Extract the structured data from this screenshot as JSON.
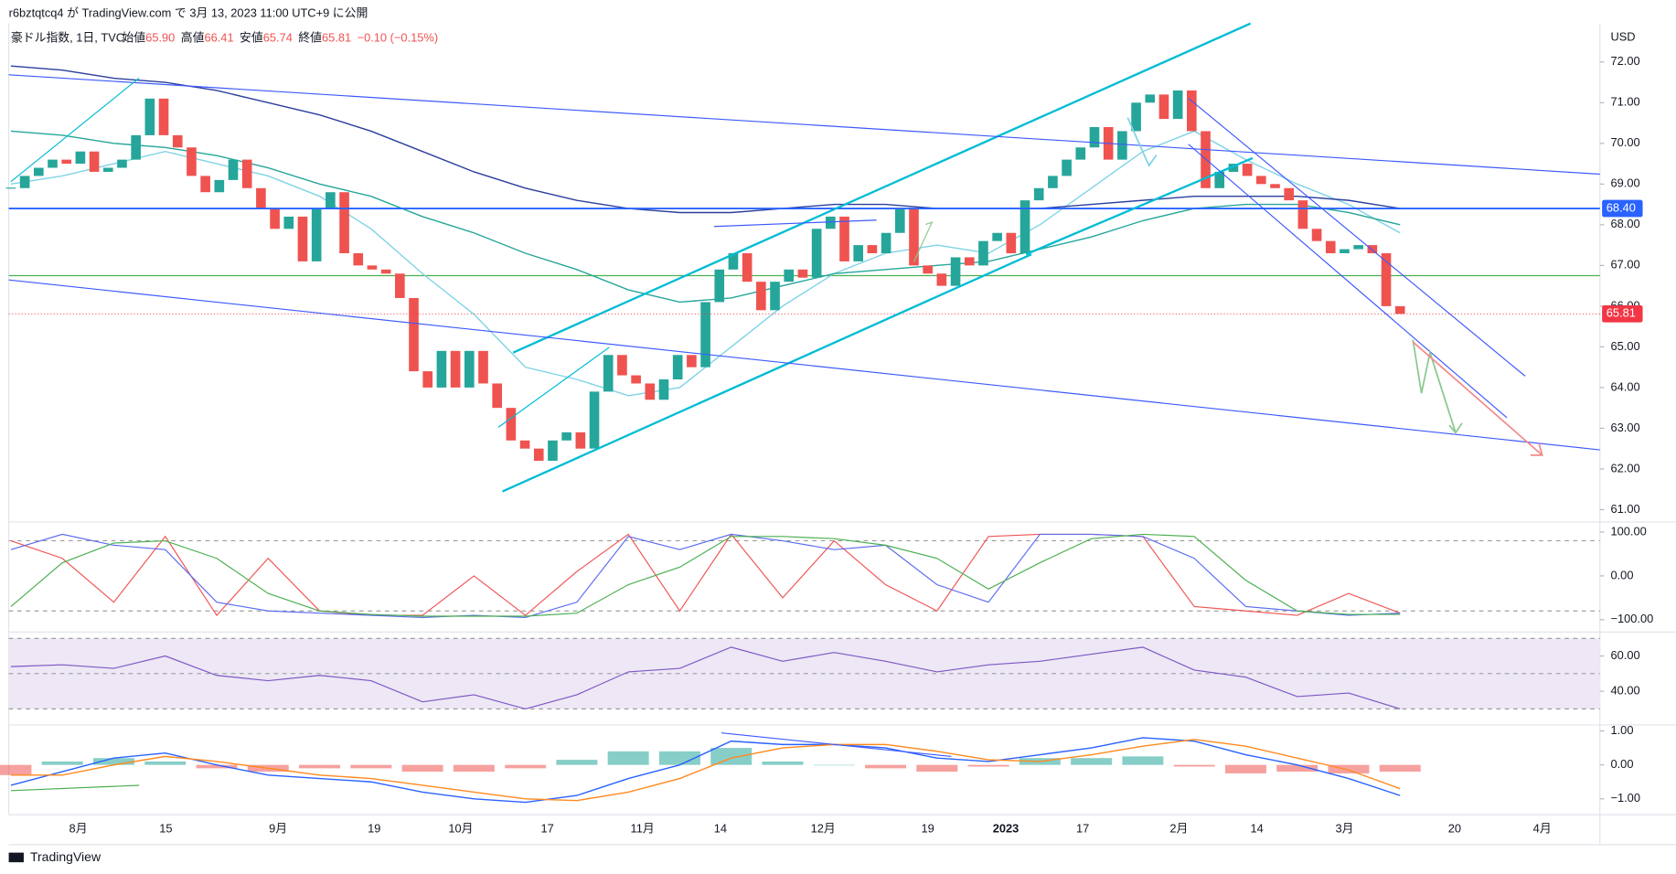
{
  "header": {
    "publisher": "r6bztqtcq4 が TradingView.com で 3月 13, 2023 11:00 UTC+9 に公開",
    "footer": "TradingView"
  },
  "chart_data": [
    {
      "type": "candlestick",
      "title": "豪ドル指数, 1日, TVC",
      "currency": "USD",
      "legend": {
        "open_label": "始値",
        "open": "65.90",
        "high_label": "高値",
        "high": "66.41",
        "low_label": "安値",
        "low": "65.74",
        "close_label": "終値",
        "close": "65.81",
        "change": "−0.10 (−0.15%)"
      },
      "x_labels": [
        "8月",
        "15",
        "9月",
        "19",
        "10月",
        "17",
        "11月",
        "14",
        "12月",
        "19",
        "2023",
        "17",
        "2月",
        "14",
        "3月",
        "20",
        "4月"
      ],
      "closes": [
        68.9,
        69.2,
        69.4,
        69.6,
        69.5,
        69.8,
        69.3,
        69.4,
        69.6,
        70.2,
        71.1,
        70.2,
        69.9,
        69.2,
        68.8,
        69.1,
        69.6,
        68.9,
        68.4,
        67.9,
        68.2,
        67.1,
        68.4,
        68.8,
        67.3,
        67.0,
        66.9,
        66.8,
        66.2,
        64.4,
        64.0,
        64.9,
        64.0,
        64.9,
        64.1,
        63.5,
        62.7,
        62.5,
        62.2,
        62.7,
        62.9,
        62.5,
        63.9,
        64.8,
        64.3,
        64.1,
        63.7,
        64.2,
        64.8,
        64.5,
        66.1,
        66.9,
        67.3,
        66.6,
        65.9,
        66.6,
        66.9,
        66.7,
        67.9,
        68.2,
        67.1,
        67.5,
        67.3,
        67.8,
        68.4,
        67.0,
        66.8,
        66.5,
        67.2,
        67.0,
        67.6,
        67.8,
        67.3,
        68.6,
        68.9,
        69.2,
        69.6,
        69.9,
        70.4,
        69.6,
        70.3,
        71.0,
        71.2,
        70.6,
        71.3,
        70.3,
        68.9,
        69.3,
        69.5,
        69.2,
        69.0,
        68.9,
        68.6,
        67.9,
        67.6,
        67.3,
        67.4,
        67.5,
        67.3,
        66.0,
        65.81
      ],
      "up_color": "#26a69a",
      "down_color": "#ef5350",
      "moving_averages": [
        {
          "color": "#7fd3e6",
          "values": [
            69.0,
            69.2,
            69.5,
            69.8,
            69.5,
            69.2,
            68.7,
            67.9,
            66.8,
            65.8,
            64.5,
            64.2,
            63.8,
            64.0,
            65.0,
            66.0,
            66.8,
            67.3,
            67.5,
            67.3,
            68.0,
            68.9,
            69.8,
            70.3,
            69.6,
            69.0,
            68.5,
            67.8
          ]
        },
        {
          "color": "#26a69a",
          "values": [
            70.3,
            70.2,
            70.0,
            69.9,
            69.7,
            69.4,
            69.0,
            68.7,
            68.2,
            67.8,
            67.3,
            66.9,
            66.4,
            66.1,
            66.2,
            66.5,
            66.8,
            66.9,
            67.0,
            67.1,
            67.4,
            67.7,
            68.1,
            68.4,
            68.5,
            68.5,
            68.3,
            68.0
          ]
        },
        {
          "color": "#2a3f9d",
          "values": [
            71.9,
            71.8,
            71.6,
            71.5,
            71.3,
            71.0,
            70.7,
            70.3,
            69.8,
            69.3,
            68.9,
            68.6,
            68.4,
            68.3,
            68.3,
            68.4,
            68.5,
            68.5,
            68.4,
            68.4,
            68.4,
            68.5,
            68.6,
            68.7,
            68.7,
            68.7,
            68.6,
            68.4
          ]
        }
      ],
      "price_lines": [
        {
          "value": 68.4,
          "label": "68.40",
          "color": "#2962ff"
        },
        {
          "value": 65.81,
          "label": "65.81",
          "color": "#f23645"
        }
      ],
      "level_line": {
        "value": 66.75,
        "color": "#4caf50"
      },
      "ylim": [
        60.737,
        72.945
      ],
      "yticks": [
        {
          "value": 61,
          "label": "61.00"
        },
        {
          "value": 62,
          "label": "62.00"
        },
        {
          "value": 63,
          "label": "63.00"
        },
        {
          "value": 64,
          "label": "64.00"
        },
        {
          "value": 65,
          "label": "65.00"
        },
        {
          "value": 66,
          "label": "66.00"
        },
        {
          "value": 67,
          "label": "67.00"
        },
        {
          "value": 68,
          "label": "68.00"
        },
        {
          "value": 69,
          "label": "69.00"
        },
        {
          "value": 70,
          "label": "70.00"
        },
        {
          "value": 71,
          "label": "71.00"
        },
        {
          "value": 72,
          "label": "72.00"
        }
      ]
    },
    {
      "type": "line",
      "ylim": [
        -124.4,
        119.5
      ],
      "yticks": [
        {
          "value": 100,
          "label": "100.00"
        },
        {
          "value": 0,
          "label": "0.00"
        },
        {
          "value": -100,
          "label": "−100.00"
        }
      ],
      "levels": [
        80,
        -80
      ],
      "series": [
        {
          "color": "#f05454",
          "values": [
            80,
            40,
            -60,
            90,
            -90,
            40,
            -80,
            -90,
            -90,
            0,
            -90,
            10,
            95,
            -80,
            95,
            -50,
            80,
            -20,
            -80,
            90,
            95,
            95,
            90,
            -70,
            -80,
            -90,
            -40,
            -85
          ]
        },
        {
          "color": "#5b6cf0",
          "values": [
            60,
            95,
            70,
            60,
            -60,
            -80,
            -85,
            -90,
            -95,
            -90,
            -95,
            -60,
            90,
            60,
            95,
            80,
            60,
            70,
            -20,
            -60,
            95,
            95,
            90,
            40,
            -70,
            -80,
            -90,
            -85
          ]
        },
        {
          "color": "#4caf50",
          "values": [
            -70,
            30,
            75,
            80,
            40,
            -40,
            -80,
            -88,
            -92,
            -92,
            -92,
            -85,
            -20,
            20,
            90,
            90,
            85,
            70,
            40,
            -30,
            30,
            85,
            95,
            90,
            -10,
            -80,
            -88,
            -88
          ]
        }
      ]
    },
    {
      "type": "line",
      "ylim": [
        21.8,
        72.7
      ],
      "yticks": [
        {
          "value": 60,
          "label": "60.00"
        },
        {
          "value": 40,
          "label": "40.00"
        }
      ],
      "levels": [
        70,
        50,
        30
      ],
      "band": [
        30,
        70
      ],
      "band_color": "#ede7f6",
      "series": [
        {
          "color": "#7e57c2",
          "values": [
            54,
            55,
            53,
            60,
            49,
            46,
            49,
            46,
            34,
            38,
            30,
            38,
            51,
            53,
            65,
            57,
            62,
            57,
            51,
            55,
            57,
            61,
            65,
            52,
            48,
            37,
            39,
            30
          ]
        }
      ]
    },
    {
      "type": "macd",
      "ylim": [
        -1.45,
        1.16
      ],
      "yticks": [
        {
          "value": 1,
          "label": "1.00"
        },
        {
          "value": 0,
          "label": "0.00"
        },
        {
          "value": -1,
          "label": "−1.00"
        }
      ],
      "histogram": [
        -0.3,
        0.1,
        0.2,
        0.1,
        -0.1,
        -0.2,
        -0.1,
        -0.1,
        -0.2,
        -0.2,
        -0.1,
        0.15,
        0.4,
        0.4,
        0.5,
        0.1,
        0,
        -0.1,
        -0.2,
        -0.05,
        0.2,
        0.2,
        0.25,
        -0.05,
        -0.25,
        -0.2,
        -0.25,
        -0.2
      ],
      "hist_up_color": "#26a69a",
      "hist_down_color": "#ef5350",
      "series": [
        {
          "color": "#2962ff",
          "values": [
            -0.6,
            -0.2,
            0.2,
            0.35,
            0.0,
            -0.3,
            -0.4,
            -0.5,
            -0.8,
            -1.0,
            -1.1,
            -0.9,
            -0.4,
            0.0,
            0.7,
            0.6,
            0.6,
            0.5,
            0.2,
            0.1,
            0.3,
            0.5,
            0.8,
            0.7,
            0.3,
            0.0,
            -0.4,
            -0.9
          ]
        },
        {
          "color": "#ff8a1f",
          "values": [
            -0.3,
            -0.3,
            0.0,
            0.25,
            0.1,
            -0.1,
            -0.3,
            -0.4,
            -0.6,
            -0.8,
            -1.0,
            -1.05,
            -0.8,
            -0.4,
            0.2,
            0.5,
            0.6,
            0.6,
            0.4,
            0.15,
            0.1,
            0.3,
            0.55,
            0.75,
            0.55,
            0.2,
            -0.15,
            -0.7
          ]
        }
      ]
    }
  ]
}
